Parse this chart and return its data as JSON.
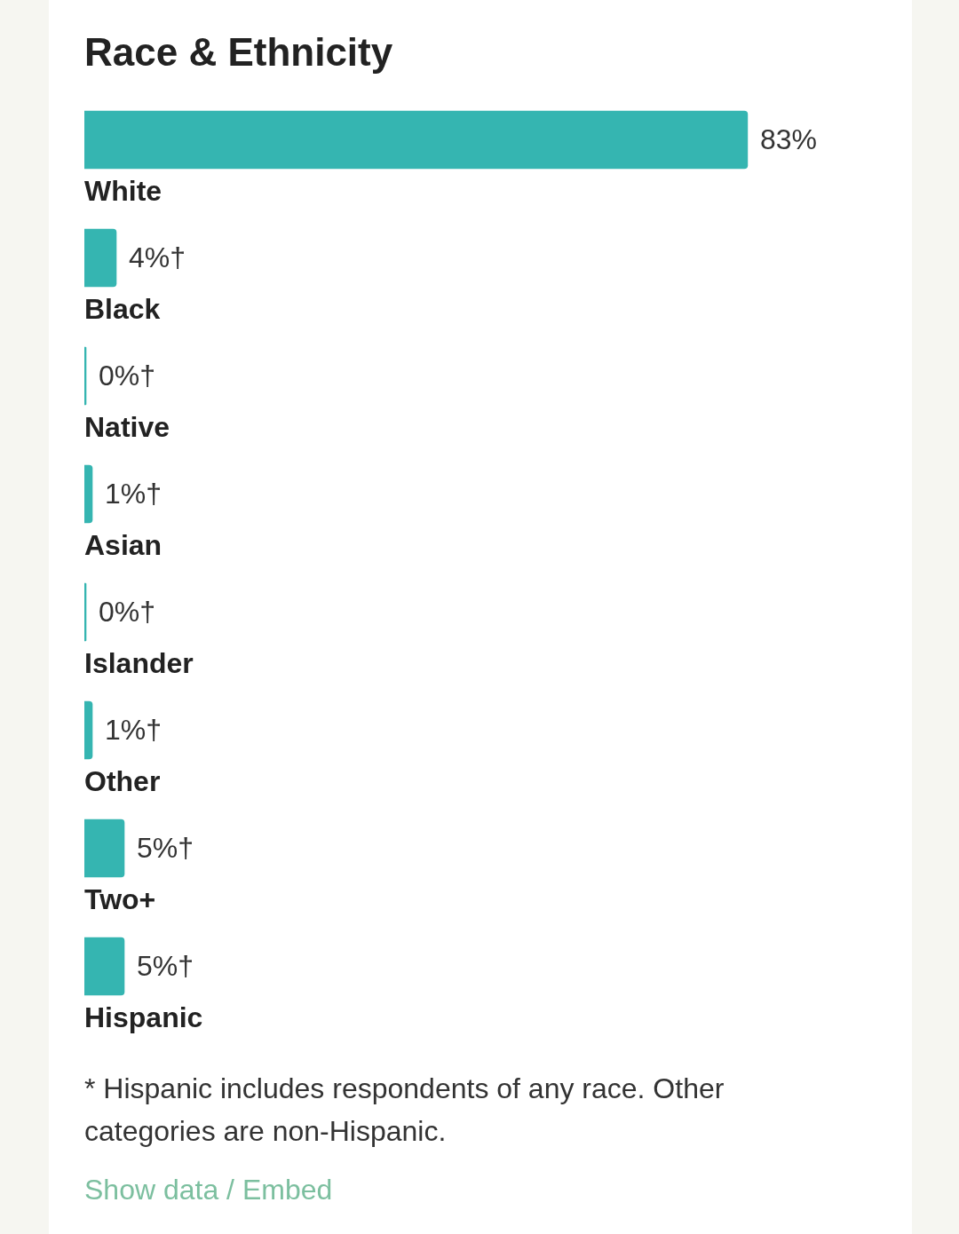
{
  "chart_data": {
    "type": "bar",
    "orientation": "horizontal",
    "title": "Race & Ethnicity",
    "categories": [
      "White",
      "Black",
      "Native",
      "Asian",
      "Islander",
      "Other",
      "Two+",
      "Hispanic"
    ],
    "values": [
      83,
      4,
      0,
      1,
      0,
      1,
      5,
      5
    ],
    "value_labels": [
      "83%",
      "4%†",
      "0%†",
      "1%†",
      "0%†",
      "1%†",
      "5%†",
      "5%†"
    ],
    "color": "#35b5b1",
    "annotations": [
      "* Hispanic includes respondents of any race. Other categories are non-Hispanic.",
      "Show data / Embed"
    ]
  }
}
